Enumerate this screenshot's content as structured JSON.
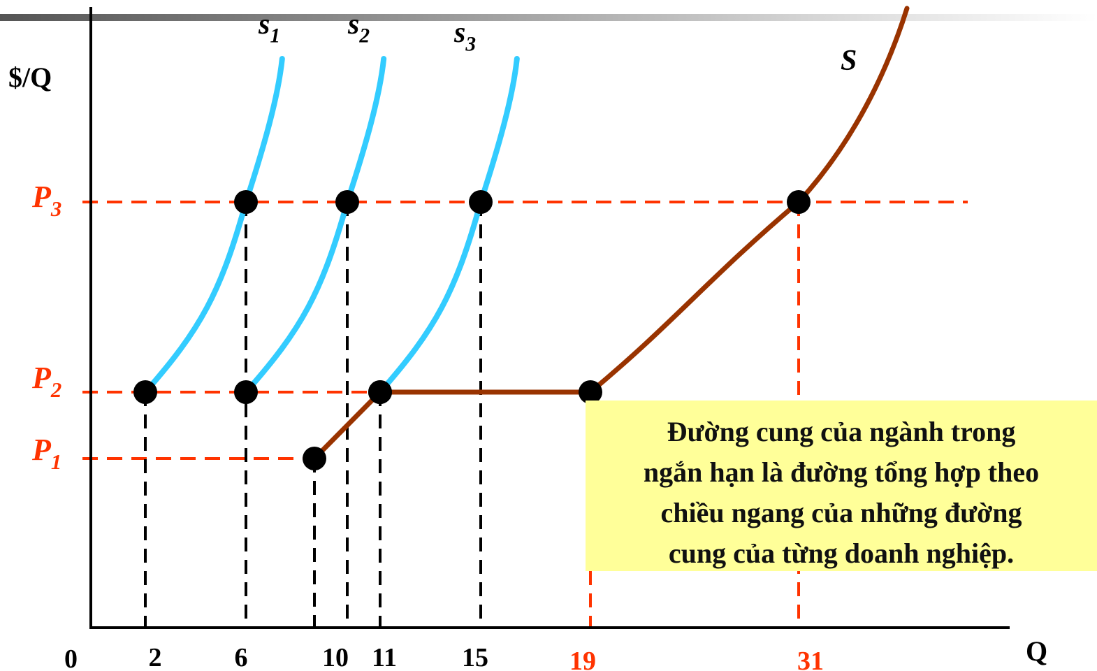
{
  "chart_data": {
    "type": "line",
    "ylabel": "$/Q",
    "xlabel": "Q",
    "origin_label": "0",
    "price_levels": [
      {
        "name": "P1",
        "label": "P",
        "sub": "1"
      },
      {
        "name": "P2",
        "label": "P",
        "sub": "2"
      },
      {
        "name": "P3",
        "label": "P",
        "sub": "3"
      }
    ],
    "x_ticks": [
      {
        "value": 2,
        "label": "2",
        "color": "#000000"
      },
      {
        "value": 6,
        "label": "6",
        "color": "#000000"
      },
      {
        "value": 10,
        "label": "10",
        "color": "#000000"
      },
      {
        "value": 11,
        "label": "11",
        "color": "#000000"
      },
      {
        "value": 15,
        "label": "15",
        "color": "#000000"
      },
      {
        "value": 19,
        "label": "19",
        "color": "#ff3300"
      },
      {
        "value": 31,
        "label": "31",
        "color": "#ff3300"
      }
    ],
    "series": [
      {
        "name": "s1",
        "label": "s",
        "sub": "1",
        "color": "#33ccff",
        "points": [
          {
            "q": 2,
            "p": "P2"
          },
          {
            "q": 6,
            "p": "P3"
          }
        ]
      },
      {
        "name": "s2",
        "label": "s",
        "sub": "2",
        "color": "#33ccff",
        "points": [
          {
            "q": 6,
            "p": "P2"
          },
          {
            "q": 10,
            "p": "P3"
          }
        ]
      },
      {
        "name": "s3",
        "label": "s",
        "sub": "3",
        "color": "#33ccff",
        "points": [
          {
            "q": 11,
            "p": "P2"
          },
          {
            "q": 15,
            "p": "P3"
          }
        ]
      },
      {
        "name": "S",
        "label": "S",
        "sub": "",
        "color": "#993300",
        "points": [
          {
            "q": 9,
            "p": "P1"
          },
          {
            "q": 11,
            "p": "P2"
          },
          {
            "q": 19,
            "p": "P2"
          },
          {
            "q": 31,
            "p": "P3"
          }
        ]
      }
    ],
    "colors": {
      "axis": "#000000",
      "price_guides": "#ff3300",
      "quantity_guides": "#000000",
      "firm_supply": "#33ccff",
      "industry_supply": "#993300",
      "labels_red": "#ff3300"
    }
  },
  "annotation": {
    "lines": [
      "Đường cung của ngành trong",
      "ngắn hạn là đường tổng hợp theo",
      "chiều ngang của những đường",
      "cung của từng doanh nghiệp."
    ],
    "background": "#ffff99"
  }
}
